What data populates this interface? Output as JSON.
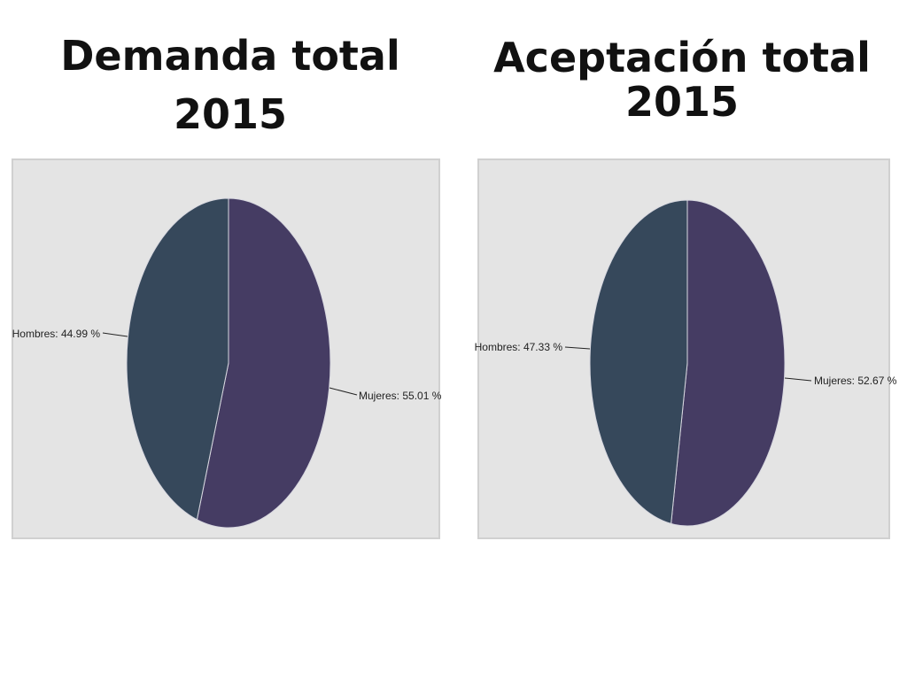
{
  "charts": [
    {
      "title_line1": "Demanda total",
      "title_line2": "2015"
    },
    {
      "title_line1": "Aceptación total",
      "title_line2": "2015"
    }
  ],
  "colors": {
    "mujeres": "#453c63",
    "hombres": "#36485b",
    "panel_bg": "#e4e4e4"
  },
  "chart_data": [
    {
      "type": "pie",
      "title": "Demanda total 2015",
      "slices": [
        {
          "label": "Mujeres: 55.01 %",
          "value": 55.01
        },
        {
          "label": "Hombres: 44.99 %",
          "value": 44.99
        }
      ]
    },
    {
      "type": "pie",
      "title": "Aceptación total 2015",
      "slices": [
        {
          "label": "Mujeres: 52.67 %",
          "value": 52.67
        },
        {
          "label": "Hombres: 47.33 %",
          "value": 47.33
        }
      ]
    }
  ]
}
